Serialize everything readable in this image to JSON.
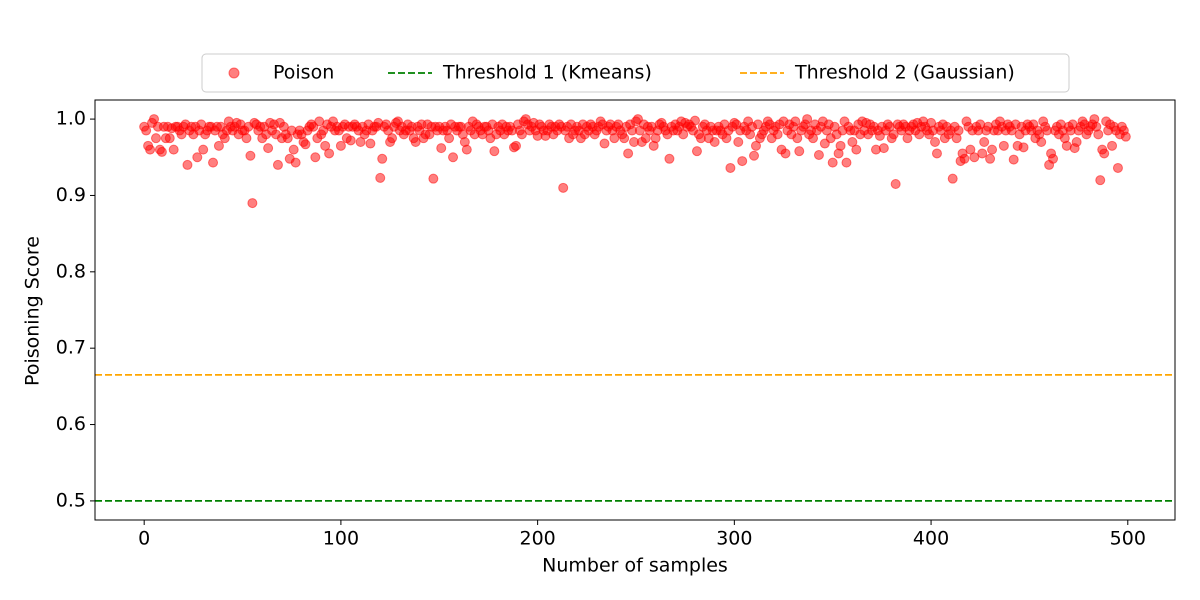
{
  "chart_data": {
    "type": "scatter",
    "x_label": "Number of samples",
    "y_label": "Poisoning Score",
    "xlim": [
      -25,
      524
    ],
    "ylim": [
      0.475,
      1.025
    ],
    "xticks": [
      0,
      100,
      200,
      300,
      400,
      500
    ],
    "yticks": [
      0.5,
      0.6,
      0.7,
      0.8,
      0.9,
      {
        "value": 1,
        "label": "1.0"
      }
    ],
    "legend": "top",
    "x": [
      0,
      1,
      2,
      3,
      4,
      5,
      6,
      7,
      8,
      9,
      10,
      11,
      12,
      13,
      14,
      15,
      16,
      17,
      18,
      19,
      20,
      21,
      22,
      23,
      24,
      25,
      26,
      27,
      28,
      29,
      30,
      31,
      32,
      33,
      34,
      35,
      36,
      37,
      38,
      39,
      40,
      41,
      42,
      43,
      44,
      45,
      46,
      47,
      48,
      49,
      50,
      51,
      52,
      53,
      54,
      55,
      56,
      57,
      58,
      59,
      60,
      61,
      62,
      63,
      64,
      65,
      66,
      67,
      68,
      69,
      70,
      71,
      72,
      73,
      74,
      75,
      76,
      77,
      78,
      79,
      80,
      81,
      82,
      83,
      84,
      85,
      86,
      87,
      88,
      89,
      90,
      91,
      92,
      93,
      94,
      95,
      96,
      97,
      98,
      99,
      100,
      101,
      102,
      103,
      104,
      105,
      106,
      107,
      108,
      109,
      110,
      111,
      112,
      113,
      114,
      115,
      116,
      117,
      118,
      119,
      120,
      121,
      122,
      123,
      124,
      125,
      126,
      127,
      128,
      129,
      130,
      131,
      132,
      133,
      134,
      135,
      136,
      137,
      138,
      139,
      140,
      141,
      142,
      143,
      144,
      145,
      146,
      147,
      148,
      149,
      150,
      151,
      152,
      153,
      154,
      155,
      156,
      157,
      158,
      159,
      160,
      161,
      162,
      163,
      164,
      165,
      166,
      167,
      168,
      169,
      170,
      171,
      172,
      173,
      174,
      175,
      176,
      177,
      178,
      179,
      180,
      181,
      182,
      183,
      184,
      185,
      186,
      187,
      188,
      189,
      190,
      191,
      192,
      193,
      194,
      195,
      196,
      197,
      198,
      199,
      200,
      201,
      202,
      203,
      204,
      205,
      206,
      207,
      208,
      209,
      210,
      211,
      212,
      213,
      214,
      215,
      216,
      217,
      218,
      219,
      220,
      221,
      222,
      223,
      224,
      225,
      226,
      227,
      228,
      229,
      230,
      231,
      232,
      233,
      234,
      235,
      236,
      237,
      238,
      239,
      240,
      241,
      242,
      243,
      244,
      245,
      246,
      247,
      248,
      249,
      250,
      251,
      252,
      253,
      254,
      255,
      256,
      257,
      258,
      259,
      260,
      261,
      262,
      263,
      264,
      265,
      266,
      267,
      268,
      269,
      270,
      271,
      272,
      273,
      274,
      275,
      276,
      277,
      278,
      279,
      280,
      281,
      282,
      283,
      284,
      285,
      286,
      287,
      288,
      289,
      290,
      291,
      292,
      293,
      294,
      295,
      296,
      297,
      298,
      299,
      300,
      301,
      302,
      303,
      304,
      305,
      306,
      307,
      308,
      309,
      310,
      311,
      312,
      313,
      314,
      315,
      316,
      317,
      318,
      319,
      320,
      321,
      322,
      323,
      324,
      325,
      326,
      327,
      328,
      329,
      330,
      331,
      332,
      333,
      334,
      335,
      336,
      337,
      338,
      339,
      340,
      341,
      342,
      343,
      344,
      345,
      346,
      347,
      348,
      349,
      350,
      351,
      352,
      353,
      354,
      355,
      356,
      357,
      358,
      359,
      360,
      361,
      362,
      363,
      364,
      365,
      366,
      367,
      368,
      369,
      370,
      371,
      372,
      373,
      374,
      375,
      376,
      377,
      378,
      379,
      380,
      381,
      382,
      383,
      384,
      385,
      386,
      387,
      388,
      389,
      390,
      391,
      392,
      393,
      394,
      395,
      396,
      397,
      398,
      399,
      400,
      401,
      402,
      403,
      404,
      405,
      406,
      407,
      408,
      409,
      410,
      411,
      412,
      413,
      414,
      415,
      416,
      417,
      418,
      419,
      420,
      421,
      422,
      423,
      424,
      425,
      426,
      427,
      428,
      429,
      430,
      431,
      432,
      433,
      434,
      435,
      436,
      437,
      438,
      439,
      440,
      441,
      442,
      443,
      444,
      445,
      446,
      447,
      448,
      449,
      450,
      451,
      452,
      453,
      454,
      455,
      456,
      457,
      458,
      459,
      460,
      461,
      462,
      463,
      464,
      465,
      466,
      467,
      468,
      469,
      470,
      471,
      472,
      473,
      474,
      475,
      476,
      477,
      478,
      479,
      480,
      481,
      482,
      483,
      484,
      485,
      486,
      487,
      488,
      489,
      490,
      491,
      492,
      493,
      494,
      495,
      496,
      497,
      498,
      499
    ],
    "series": [
      {
        "name": "Poison",
        "color": "#ff0000",
        "values": [
          0.99,
          0.985,
          0.965,
          0.96,
          0.995,
          1.0,
          0.975,
          0.99,
          0.96,
          0.957,
          0.99,
          0.975,
          0.99,
          0.975,
          0.988,
          0.96,
          0.99,
          0.99,
          0.985,
          0.98,
          0.99,
          0.993,
          0.94,
          0.985,
          0.99,
          0.98,
          0.99,
          0.95,
          0.985,
          0.993,
          0.96,
          0.98,
          0.985,
          0.99,
          0.99,
          0.943,
          0.985,
          0.99,
          0.965,
          0.99,
          0.98,
          0.975,
          0.985,
          0.997,
          0.99,
          0.985,
          0.99,
          0.995,
          0.98,
          0.993,
          0.985,
          0.985,
          0.975,
          0.99,
          0.952,
          0.89,
          0.995,
          0.993,
          0.985,
          0.99,
          0.975,
          0.99,
          0.98,
          0.962,
          0.995,
          0.985,
          0.993,
          0.98,
          0.94,
          0.995,
          0.975,
          0.99,
          0.98,
          0.975,
          0.948,
          0.985,
          0.96,
          0.943,
          0.98,
          0.985,
          0.98,
          0.97,
          0.967,
          0.985,
          0.99,
          0.993,
          0.99,
          0.95,
          0.975,
          0.997,
          0.98,
          0.985,
          0.965,
          0.993,
          0.955,
          0.99,
          0.997,
          0.985,
          0.99,
          0.985,
          0.965,
          0.99,
          0.993,
          0.975,
          0.99,
          0.972,
          0.99,
          0.993,
          0.99,
          0.985,
          0.97,
          0.99,
          0.98,
          0.985,
          0.993,
          0.968,
          0.985,
          0.99,
          0.99,
          0.995,
          0.923,
          0.948,
          0.99,
          0.993,
          0.985,
          0.97,
          0.975,
          0.99,
          0.995,
          0.997,
          0.985,
          0.99,
          0.98,
          0.985,
          0.993,
          0.985,
          0.99,
          0.975,
          0.97,
          0.99,
          0.985,
          0.993,
          0.975,
          0.98,
          0.993,
          0.98,
          0.99,
          0.922,
          0.99,
          0.985,
          0.99,
          0.962,
          0.985,
          0.99,
          0.985,
          0.975,
          0.993,
          0.95,
          0.99,
          0.985,
          0.99,
          0.99,
          0.98,
          0.97,
          0.96,
          0.99,
          0.985,
          0.997,
          0.98,
          0.993,
          0.99,
          0.985,
          0.98,
          0.99,
          0.99,
          0.985,
          0.975,
          0.993,
          0.958,
          0.98,
          0.99,
          0.985,
          0.993,
          0.98,
          0.99,
          0.985,
          0.99,
          0.985,
          0.963,
          0.965,
          0.993,
          0.985,
          0.98,
          0.997,
          1.0,
          0.993,
          0.985,
          0.99,
          0.995,
          0.985,
          0.978,
          0.993,
          0.99,
          0.985,
          0.978,
          0.985,
          0.993,
          0.99,
          0.98,
          0.99,
          0.985,
          0.993,
          0.99,
          0.91,
          0.985,
          0.99,
          0.975,
          0.993,
          0.98,
          0.985,
          0.99,
          0.985,
          0.975,
          0.993,
          0.98,
          0.99,
          0.985,
          0.993,
          0.99,
          0.98,
          0.985,
          0.99,
          0.997,
          0.993,
          0.968,
          0.985,
          0.99,
          0.993,
          0.985,
          0.975,
          0.99,
          0.993,
          0.985,
          0.98,
          0.975,
          0.99,
          0.955,
          0.993,
          0.985,
          0.97,
          0.997,
          1.0,
          0.985,
          0.97,
          0.993,
          0.975,
          0.99,
          0.985,
          0.99,
          0.965,
          0.975,
          0.985,
          0.993,
          0.995,
          0.99,
          0.985,
          0.98,
          0.948,
          0.99,
          0.985,
          0.993,
          0.985,
          0.99,
          0.997,
          0.98,
          0.995,
          0.99,
          0.993,
          0.99,
          0.985,
          0.998,
          0.958,
          0.98,
          0.975,
          0.99,
          0.993,
          0.985,
          0.975,
          0.99,
          0.985,
          0.97,
          0.985,
          0.99,
          0.985,
          0.98,
          0.993,
          0.975,
          0.985,
          0.936,
          0.99,
          0.995,
          0.993,
          0.97,
          0.985,
          0.945,
          0.99,
          0.985,
          0.997,
          0.98,
          0.99,
          0.952,
          0.965,
          0.993,
          0.975,
          0.98,
          0.985,
          0.99,
          0.997,
          0.993,
          0.975,
          0.985,
          0.99,
          0.98,
          0.993,
          0.96,
          0.997,
          0.955,
          0.985,
          0.993,
          0.98,
          0.99,
          0.997,
          0.975,
          0.958,
          0.985,
          0.99,
          0.993,
          1.0,
          0.98,
          0.985,
          0.975,
          0.993,
          0.985,
          0.953,
          0.99,
          0.997,
          0.968,
          0.985,
          0.993,
          0.975,
          0.943,
          0.99,
          0.98,
          0.955,
          0.965,
          0.985,
          0.997,
          0.943,
          0.99,
          0.985,
          0.97,
          0.985,
          0.96,
          0.993,
          0.98,
          0.997,
          0.985,
          0.995,
          0.98,
          0.993,
          0.985,
          0.99,
          0.96,
          0.985,
          0.978,
          0.99,
          0.962,
          0.985,
          0.993,
          0.99,
          0.975,
          0.98,
          0.915,
          0.993,
          0.99,
          0.985,
          0.993,
          0.99,
          0.975,
          0.985,
          0.99,
          0.993,
          0.985,
          0.995,
          0.98,
          0.99,
          0.997,
          0.99,
          0.985,
          0.98,
          0.995,
          0.985,
          0.97,
          0.955,
          0.99,
          0.985,
          0.993,
          0.975,
          0.99,
          0.98,
          0.985,
          0.922,
          0.99,
          0.975,
          0.985,
          0.945,
          0.955,
          0.948,
          0.997,
          0.99,
          0.96,
          0.985,
          0.95,
          0.99,
          0.985,
          0.993,
          0.955,
          0.97,
          0.985,
          0.99,
          0.948,
          0.96,
          0.985,
          0.993,
          0.985,
          0.997,
          0.99,
          0.965,
          0.985,
          0.993,
          0.99,
          0.985,
          0.947,
          0.993,
          0.965,
          0.98,
          0.99,
          0.963,
          0.985,
          0.993,
          0.99,
          0.985,
          0.993,
          0.975,
          0.985,
          0.98,
          0.97,
          0.997,
          0.99,
          0.985,
          0.94,
          0.955,
          0.948,
          0.985,
          0.99,
          0.98,
          0.993,
          0.985,
          0.975,
          0.965,
          0.99,
          0.985,
          0.993,
          0.962,
          0.97,
          0.985,
          0.99,
          0.997,
          0.993,
          0.98,
          0.985,
          0.99,
          0.993,
          1.0,
          0.99,
          0.98,
          0.92,
          0.96,
          0.955,
          0.997,
          0.985,
          0.993,
          0.965,
          0.99,
          0.985,
          0.936,
          0.98,
          0.99,
          0.985,
          0.977
        ]
      }
    ],
    "hlines": [
      {
        "name": "Threshold 1 (Kmeans)",
        "color": "#008000",
        "value": 0.5
      },
      {
        "name": "Threshold 2 (Gaussian)",
        "color": "#ffa500",
        "value": 0.665
      }
    ]
  }
}
